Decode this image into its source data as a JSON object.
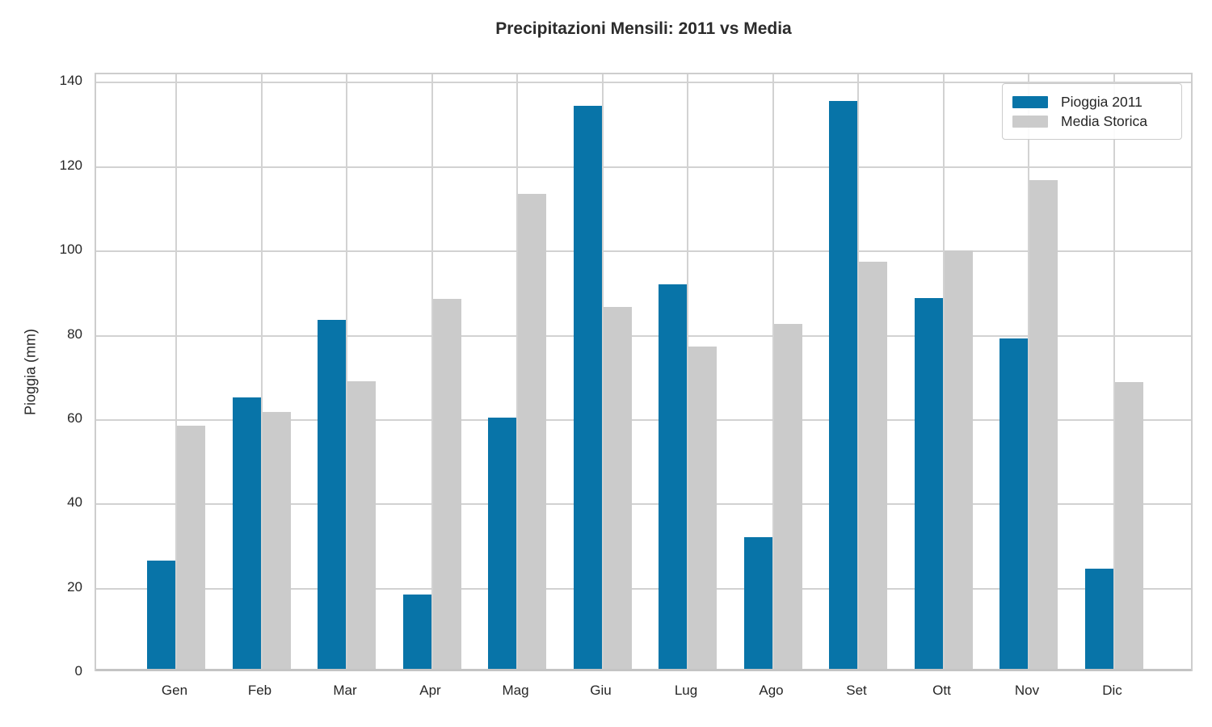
{
  "figure_title": "Precipitazioni Mensili: 2011 vs Media",
  "chart_data": {
    "type": "bar",
    "title": "Precipitazioni Mensili: 2011 vs Media",
    "categories": [
      "Gen",
      "Feb",
      "Mar",
      "Apr",
      "Mag",
      "Giu",
      "Lug",
      "Ago",
      "Set",
      "Ott",
      "Nov",
      "Dic"
    ],
    "series": [
      {
        "name": "Pioggia 2011",
        "color": "#0874a8",
        "values": [
          25.8,
          64.5,
          83.0,
          17.9,
          59.7,
          133.8,
          91.4,
          31.5,
          135.0,
          88.2,
          78.5,
          24.0
        ]
      },
      {
        "name": "Media Storica",
        "color": "#cbcbcb",
        "values": [
          57.9,
          61.2,
          68.4,
          88.0,
          112.8,
          86.1,
          76.6,
          82.1,
          96.8,
          99.5,
          116.2,
          68.3
        ]
      }
    ],
    "xlabel": "",
    "ylabel": "Pioggia (mm)",
    "yticks": [
      0,
      20,
      40,
      60,
      80,
      100,
      120,
      140
    ],
    "ylim": [
      0,
      142
    ],
    "grid": true,
    "legend_position": "upper right"
  },
  "legend": {
    "items": [
      {
        "label": "Pioggia 2011",
        "color": "#0874a8"
      },
      {
        "label": "Media Storica",
        "color": "#cbcbcb"
      }
    ]
  },
  "colors": {
    "bar_2011": "#0874a8",
    "bar_media": "#cbcbcb",
    "gridline": "#d2d2d2",
    "frame": "#cdcdcd",
    "text": "#262626",
    "title_text": "#2b2b2b",
    "background": "#ffffff"
  }
}
